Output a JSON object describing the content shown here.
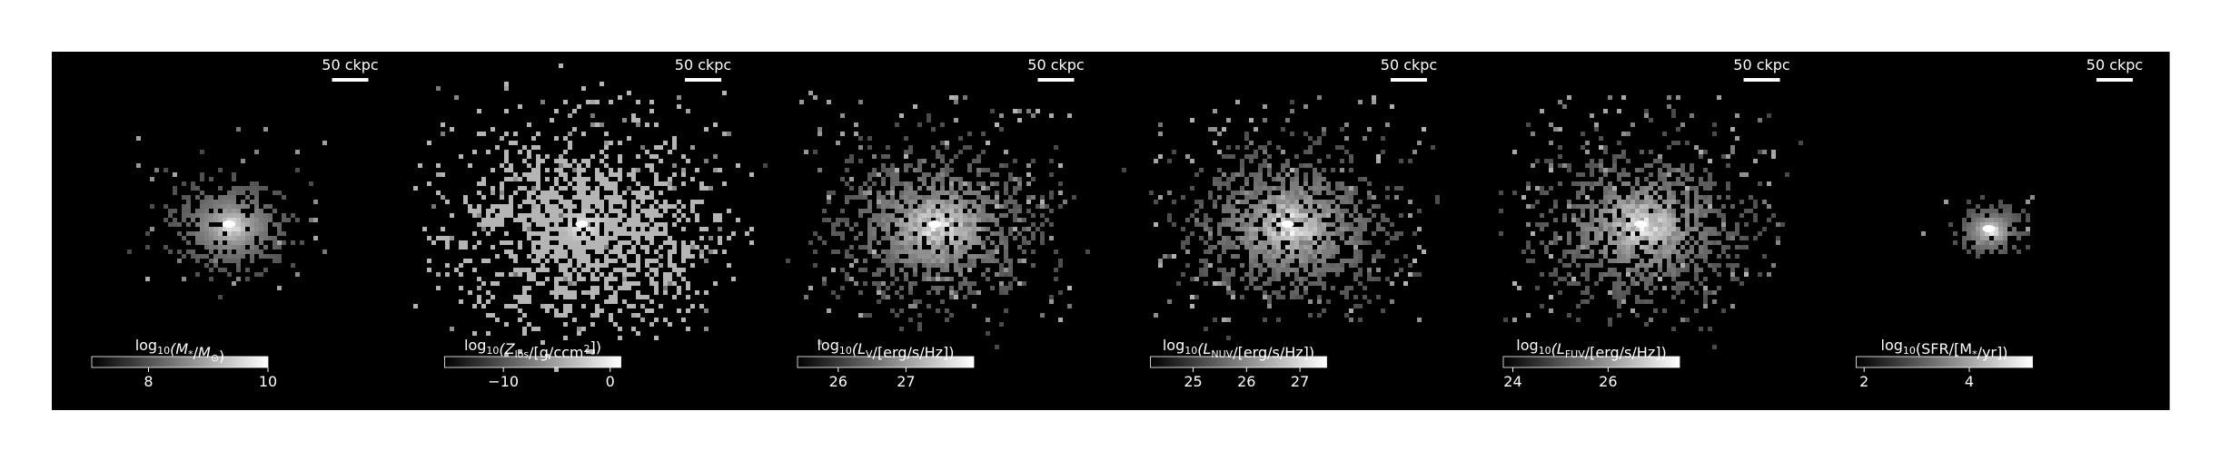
{
  "figure": {
    "background": "#ffffff",
    "panel_background": "#000000",
    "foreground": "#ffffff",
    "panels": [
      {
        "scalebar_label": "50 ckpc",
        "colorbar_label": "log10(M*/M⊙)",
        "colorbar_label_parts": [
          {
            "t": "log"
          },
          {
            "t": "10",
            "sub": true
          },
          {
            "t": "(M",
            "italic": true
          },
          {
            "t": "*",
            "sub": true
          },
          {
            "t": "/"
          },
          {
            "t": "M",
            "italic": true
          },
          {
            "t": "⊙",
            "sub": true
          },
          {
            "t": ")"
          }
        ],
        "colorbar_range": [
          7.05,
          10.0
        ],
        "colorbar_ticks": [
          {
            "value": 8,
            "label": "8"
          },
          {
            "value": 10,
            "label": "10"
          }
        ],
        "galaxy": {
          "size": "small",
          "peak": 0.95,
          "fill": "dense"
        }
      },
      {
        "scalebar_label": "50 ckpc",
        "colorbar_label": "log10(Zlos/[g/ccm2])",
        "colorbar_label_parts": [
          {
            "t": "log"
          },
          {
            "t": "10",
            "sub": true
          },
          {
            "t": "(Z",
            "italic": true
          },
          {
            "t": "los",
            "sub": true
          },
          {
            "t": "/[g/ccm"
          },
          {
            "t": "2",
            "sup": true
          },
          {
            "t": "])"
          }
        ],
        "colorbar_range": [
          -15.5,
          1.0
        ],
        "colorbar_ticks": [
          {
            "value": -10,
            "label": "−10"
          },
          {
            "value": 0,
            "label": "0"
          }
        ],
        "galaxy": {
          "size": "large",
          "peak": 0.9,
          "fill": "flat"
        }
      },
      {
        "scalebar_label": "50 ckpc",
        "colorbar_label": "log10(LV/[erg/s/Hz])",
        "colorbar_label_parts": [
          {
            "t": "log"
          },
          {
            "t": "10",
            "sub": true
          },
          {
            "t": "(L",
            "italic": true
          },
          {
            "t": "V",
            "sub": true
          },
          {
            "t": "/[erg/s/Hz])"
          }
        ],
        "colorbar_range": [
          25.4,
          28.0
        ],
        "colorbar_ticks": [
          {
            "value": 26,
            "label": "26"
          },
          {
            "value": 27,
            "label": "27"
          }
        ],
        "galaxy": {
          "size": "medium",
          "peak": 1.0,
          "fill": "sparse"
        }
      },
      {
        "scalebar_label": "50 ckpc",
        "colorbar_label": "log10(LNUV/[erg/s/Hz])",
        "colorbar_label_parts": [
          {
            "t": "log"
          },
          {
            "t": "10",
            "sub": true
          },
          {
            "t": "(L",
            "italic": true
          },
          {
            "t": "NUV",
            "sub": true
          },
          {
            "t": "/[erg/s/Hz])"
          }
        ],
        "colorbar_range": [
          24.2,
          27.5
        ],
        "colorbar_ticks": [
          {
            "value": 25,
            "label": "25"
          },
          {
            "value": 26,
            "label": "26"
          },
          {
            "value": 27,
            "label": "27"
          }
        ],
        "galaxy": {
          "size": "medium",
          "peak": 1.0,
          "fill": "sparse"
        }
      },
      {
        "scalebar_label": "50 ckpc",
        "colorbar_label": "log10(LFUV/[erg/s/Hz])",
        "colorbar_label_parts": [
          {
            "t": "log"
          },
          {
            "t": "10",
            "sub": true
          },
          {
            "t": "(L",
            "italic": true
          },
          {
            "t": "FUV",
            "sub": true
          },
          {
            "t": "/[erg/s/Hz])"
          }
        ],
        "colorbar_range": [
          23.8,
          27.5
        ],
        "colorbar_ticks": [
          {
            "value": 24,
            "label": "24"
          },
          {
            "value": 26,
            "label": "26"
          }
        ],
        "galaxy": {
          "size": "medium",
          "peak": 1.0,
          "fill": "sparse"
        }
      },
      {
        "scalebar_label": "50 ckpc",
        "colorbar_label": "log10(SFR/[M*/yr])",
        "colorbar_label_parts": [
          {
            "t": "log"
          },
          {
            "t": "10",
            "sub": true
          },
          {
            "t": "(SFR/[M"
          },
          {
            "t": "*",
            "sub": true
          },
          {
            "t": "/yr])"
          }
        ],
        "colorbar_range": [
          1.85,
          5.2
        ],
        "colorbar_ticks": [
          {
            "value": 2,
            "label": "2"
          },
          {
            "value": 4,
            "label": "4"
          }
        ],
        "galaxy": {
          "size": "tiny",
          "peak": 1.0,
          "fill": "dense"
        }
      }
    ]
  }
}
